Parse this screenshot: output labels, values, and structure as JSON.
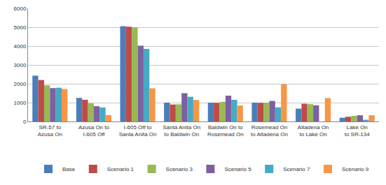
{
  "chart_data": {
    "type": "bar",
    "categories": [
      "SR-57 to Azusa On",
      "Azusa On to I-605 Off",
      "I-605 Off to Santa Anita On",
      "Santa Anita On to Baldwin On",
      "Baldwin On to Rosemead On",
      "Rosemead On to Altadena On",
      "Altadena On to Lake On",
      "Lake On to SR-134"
    ],
    "series": [
      {
        "name": "Base",
        "color": "#4a7ebb",
        "values": [
          2430,
          1250,
          5060,
          1000,
          1000,
          1000,
          680,
          200
        ]
      },
      {
        "name": "Scenario 1",
        "color": "#be4b48",
        "values": [
          2200,
          1150,
          5030,
          900,
          990,
          990,
          940,
          250
        ]
      },
      {
        "name": "Scenario 3",
        "color": "#98b954",
        "values": [
          1920,
          960,
          5000,
          910,
          1040,
          1000,
          920,
          300
        ]
      },
      {
        "name": "Scenario 5",
        "color": "#7d60a0",
        "values": [
          1770,
          810,
          4020,
          1500,
          1370,
          1090,
          860,
          330
        ]
      },
      {
        "name": "Scenario 7",
        "color": "#46aac5",
        "values": [
          1790,
          740,
          3850,
          1310,
          1150,
          750,
          0,
          90
        ]
      },
      {
        "name": "Scenario 9",
        "color": "#f79646",
        "values": [
          1720,
          340,
          1760,
          1140,
          850,
          1980,
          1240,
          330
        ]
      }
    ],
    "ylim": [
      0,
      6000
    ],
    "yticks": [
      0,
      1000,
      2000,
      3000,
      4000,
      5000,
      6000
    ],
    "grid": true,
    "legend": "bottom"
  }
}
